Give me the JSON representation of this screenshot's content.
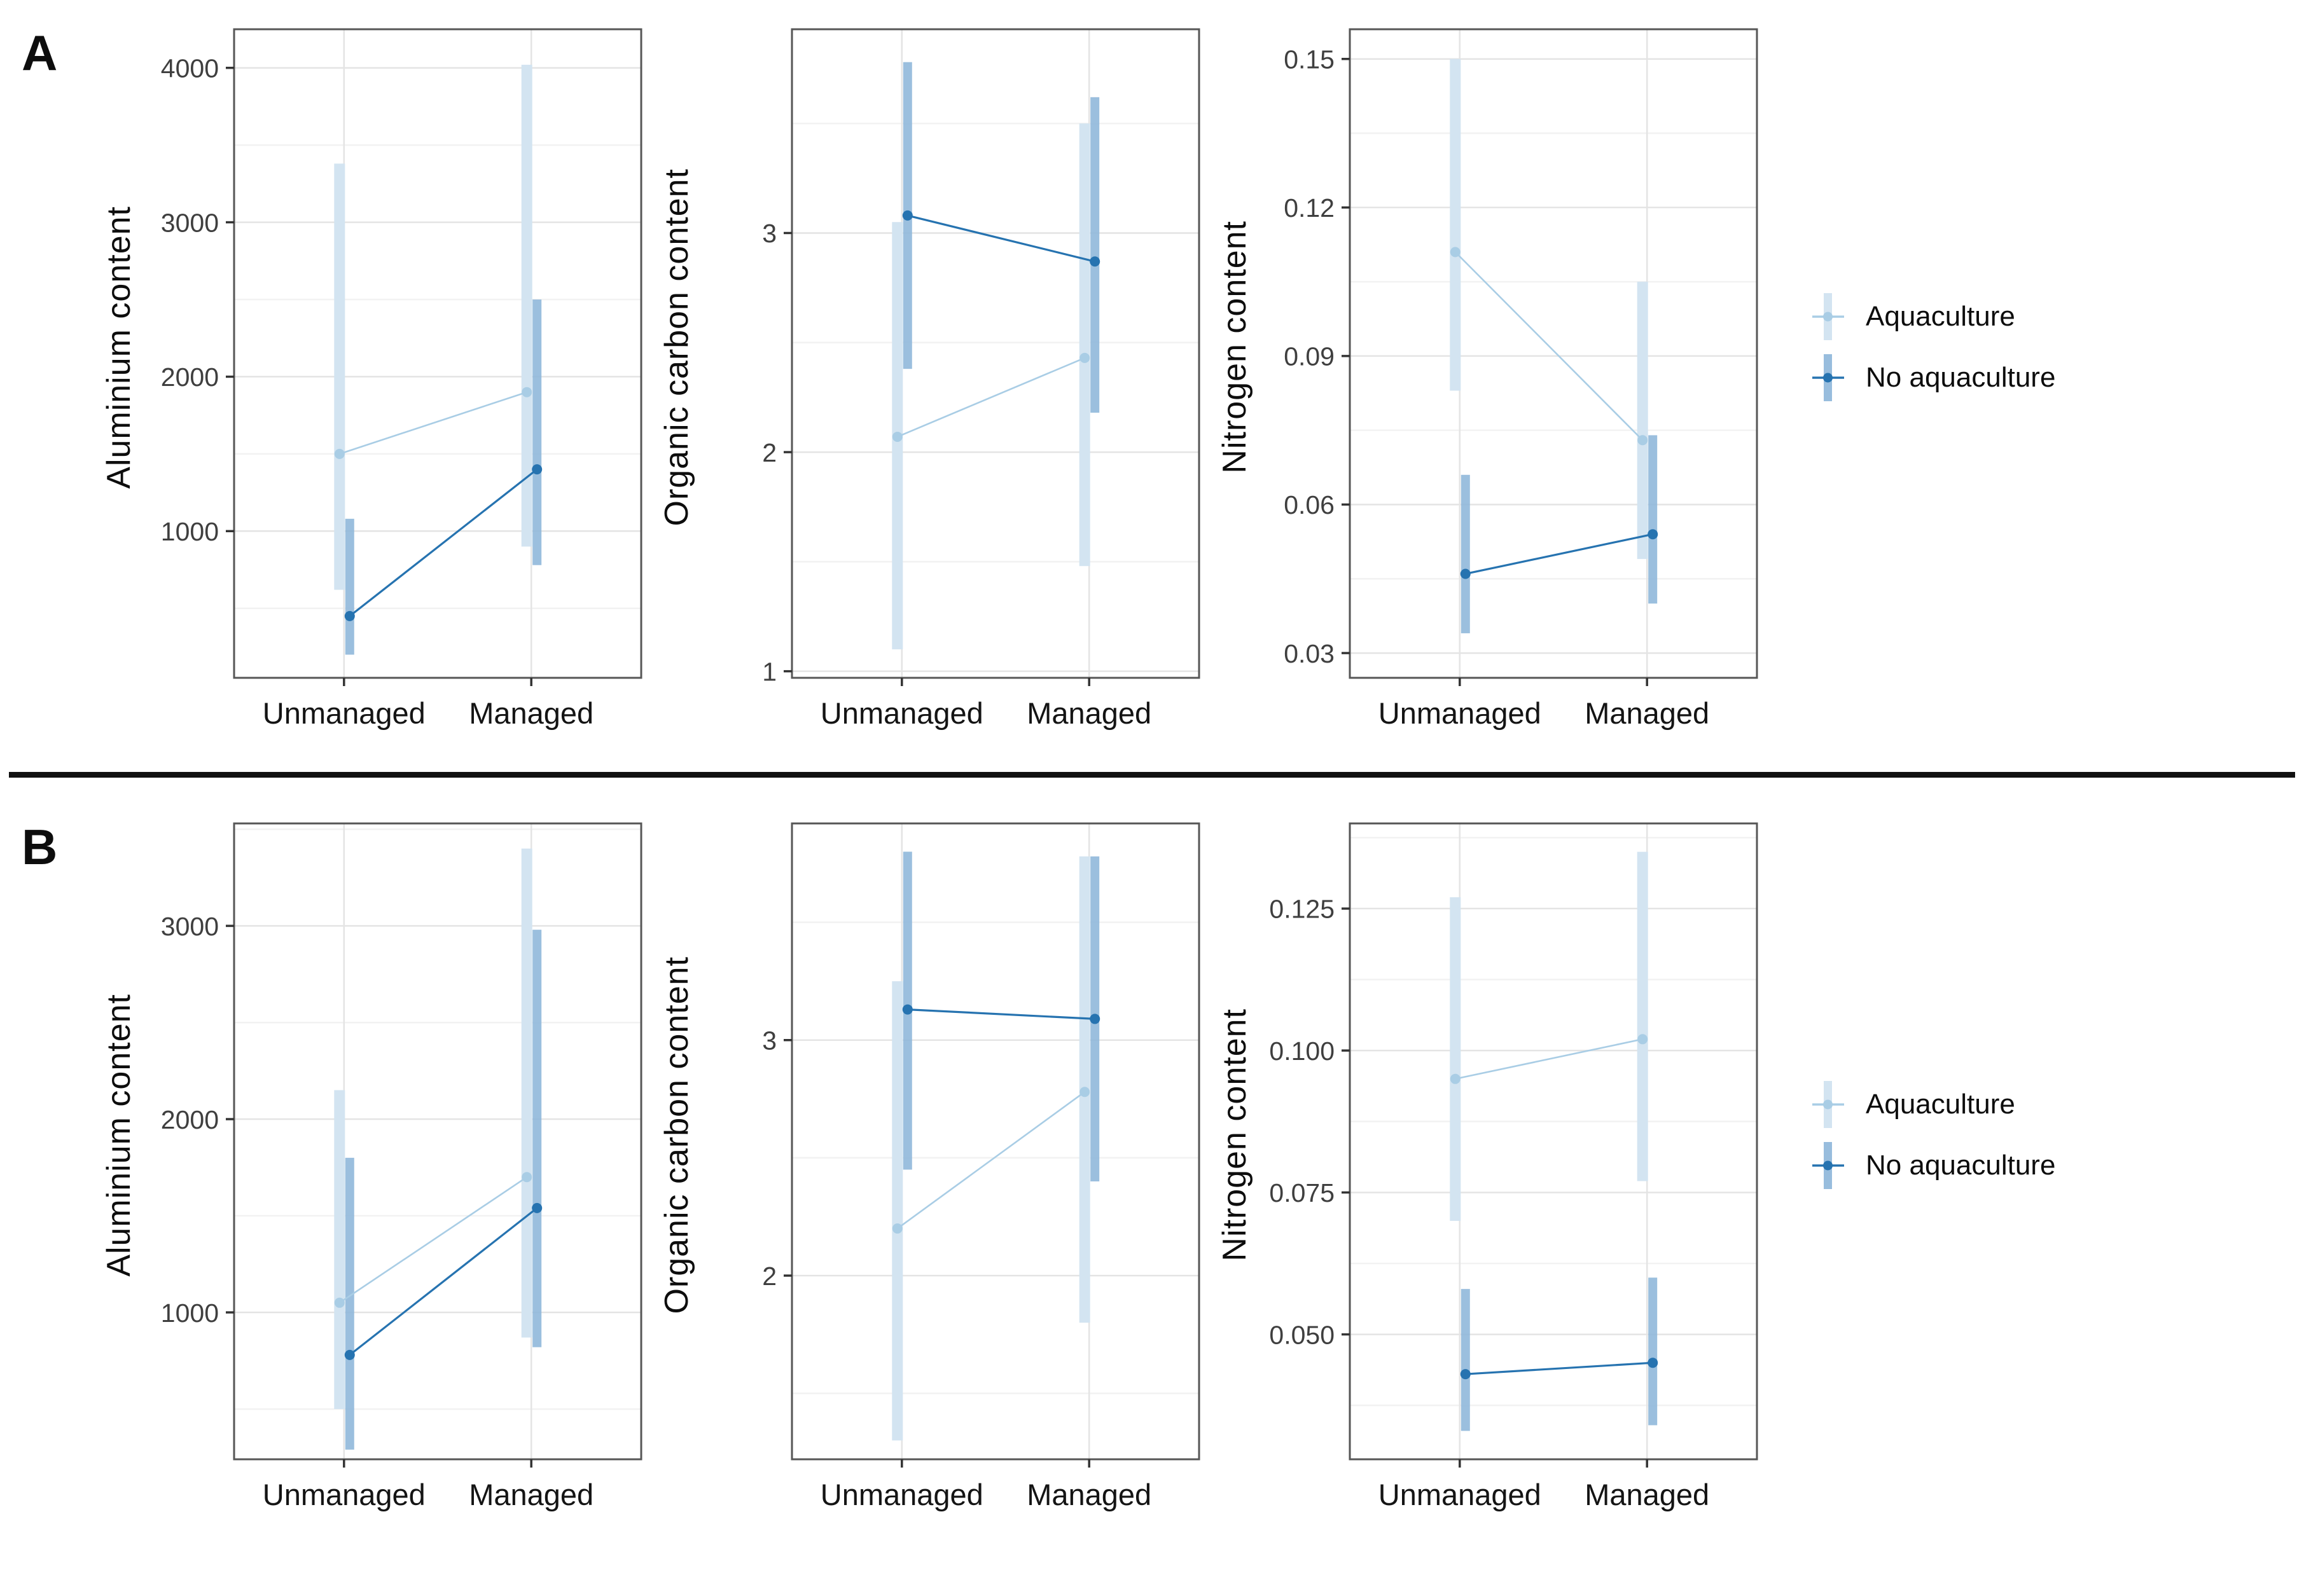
{
  "figure": {
    "background": "#ffffff",
    "divider_color": "#111111",
    "panel_labels": [
      "A",
      "B"
    ]
  },
  "chart_data": {
    "type": "pointrange",
    "categories": [
      "Unmanaged",
      "Managed"
    ],
    "legend": {
      "position": "right",
      "items": [
        {
          "key": "aquaculture",
          "label": "Aquaculture"
        },
        {
          "key": "no_aquaculture",
          "label": "No aquaculture"
        }
      ]
    },
    "colors": {
      "aquaculture": {
        "bar": "#d3e4f1",
        "line": "#a9cde5"
      },
      "no_aquaculture": {
        "bar": "#8db6d9",
        "line": "#2673b0"
      },
      "grid_major": "#e4e4e4",
      "grid_minor": "#f2f2f2",
      "plot_border": "#565656",
      "tick_mark": "#333333",
      "tick_text": "#3f3f3f"
    },
    "panels": [
      {
        "label": "A",
        "plots": [
          {
            "ylabel": "Aluminium content",
            "ylim": [
              50,
              4250
            ],
            "yticks": [
              1000,
              2000,
              3000,
              4000
            ],
            "ytick_labels": [
              "1000",
              "2000",
              "3000",
              "4000"
            ],
            "series": [
              {
                "key": "aquaculture",
                "name": "Aquaculture",
                "means": [
                  1500,
                  1900
                ],
                "lower": [
                  620,
                  900
                ],
                "upper": [
                  3380,
                  4020
                ]
              },
              {
                "key": "no_aquaculture",
                "name": "No aquaculture",
                "means": [
                  450,
                  1400
                ],
                "lower": [
                  200,
                  780
                ],
                "upper": [
                  1080,
                  2500
                ]
              }
            ]
          },
          {
            "ylabel": "Organic carbon content",
            "ylim": [
              0.97,
              3.93
            ],
            "yticks": [
              1,
              2,
              3
            ],
            "ytick_labels": [
              "1",
              "2",
              "3"
            ],
            "series": [
              {
                "key": "aquaculture",
                "name": "Aquaculture",
                "means": [
                  2.07,
                  2.43
                ],
                "lower": [
                  1.1,
                  1.48
                ],
                "upper": [
                  3.05,
                  3.5
                ]
              },
              {
                "key": "no_aquaculture",
                "name": "No aquaculture",
                "means": [
                  3.08,
                  2.87
                ],
                "lower": [
                  2.38,
                  2.18
                ],
                "upper": [
                  3.78,
                  3.62
                ]
              }
            ]
          },
          {
            "ylabel": "Nitrogen content",
            "ylim": [
              0.025,
              0.156
            ],
            "yticks": [
              0.03,
              0.06,
              0.09,
              0.12,
              0.15
            ],
            "ytick_labels": [
              "0.03",
              "0.06",
              "0.09",
              "0.12",
              "0.15"
            ],
            "series": [
              {
                "key": "aquaculture",
                "name": "Aquaculture",
                "means": [
                  0.111,
                  0.073
                ],
                "lower": [
                  0.083,
                  0.049
                ],
                "upper": [
                  0.15,
                  0.105
                ]
              },
              {
                "key": "no_aquaculture",
                "name": "No aquaculture",
                "means": [
                  0.046,
                  0.054
                ],
                "lower": [
                  0.034,
                  0.04
                ],
                "upper": [
                  0.066,
                  0.074
                ]
              }
            ]
          }
        ]
      },
      {
        "label": "B",
        "plots": [
          {
            "ylabel": "Aluminium content",
            "ylim": [
              240,
              3530
            ],
            "yticks": [
              1000,
              2000,
              3000
            ],
            "ytick_labels": [
              "1000",
              "2000",
              "3000"
            ],
            "series": [
              {
                "key": "aquaculture",
                "name": "Aquaculture",
                "means": [
                  1050,
                  1700
                ],
                "lower": [
                  500,
                  870
                ],
                "upper": [
                  2150,
                  3400
                ]
              },
              {
                "key": "no_aquaculture",
                "name": "No aquaculture",
                "means": [
                  780,
                  1540
                ],
                "lower": [
                  290,
                  820
                ],
                "upper": [
                  1800,
                  2980
                ]
              }
            ]
          },
          {
            "ylabel": "Organic carbon content",
            "ylim": [
              1.22,
              3.92
            ],
            "yticks": [
              2,
              3
            ],
            "ytick_labels": [
              "2",
              "3"
            ],
            "series": [
              {
                "key": "aquaculture",
                "name": "Aquaculture",
                "means": [
                  2.2,
                  2.78
                ],
                "lower": [
                  1.3,
                  1.8
                ],
                "upper": [
                  3.25,
                  3.78
                ]
              },
              {
                "key": "no_aquaculture",
                "name": "No aquaculture",
                "means": [
                  3.13,
                  3.09
                ],
                "lower": [
                  2.45,
                  2.4
                ],
                "upper": [
                  3.8,
                  3.78
                ]
              }
            ]
          },
          {
            "ylabel": "Nitrogen content",
            "ylim": [
              0.028,
              0.14
            ],
            "yticks": [
              0.05,
              0.075,
              0.1,
              0.125
            ],
            "ytick_labels": [
              "0.050",
              "0.075",
              "0.100",
              "0.125"
            ],
            "series": [
              {
                "key": "aquaculture",
                "name": "Aquaculture",
                "means": [
                  0.095,
                  0.102
                ],
                "lower": [
                  0.07,
                  0.077
                ],
                "upper": [
                  0.127,
                  0.135
                ]
              },
              {
                "key": "no_aquaculture",
                "name": "No aquaculture",
                "means": [
                  0.043,
                  0.045
                ],
                "lower": [
                  0.033,
                  0.034
                ],
                "upper": [
                  0.058,
                  0.06
                ]
              }
            ]
          }
        ]
      }
    ]
  }
}
